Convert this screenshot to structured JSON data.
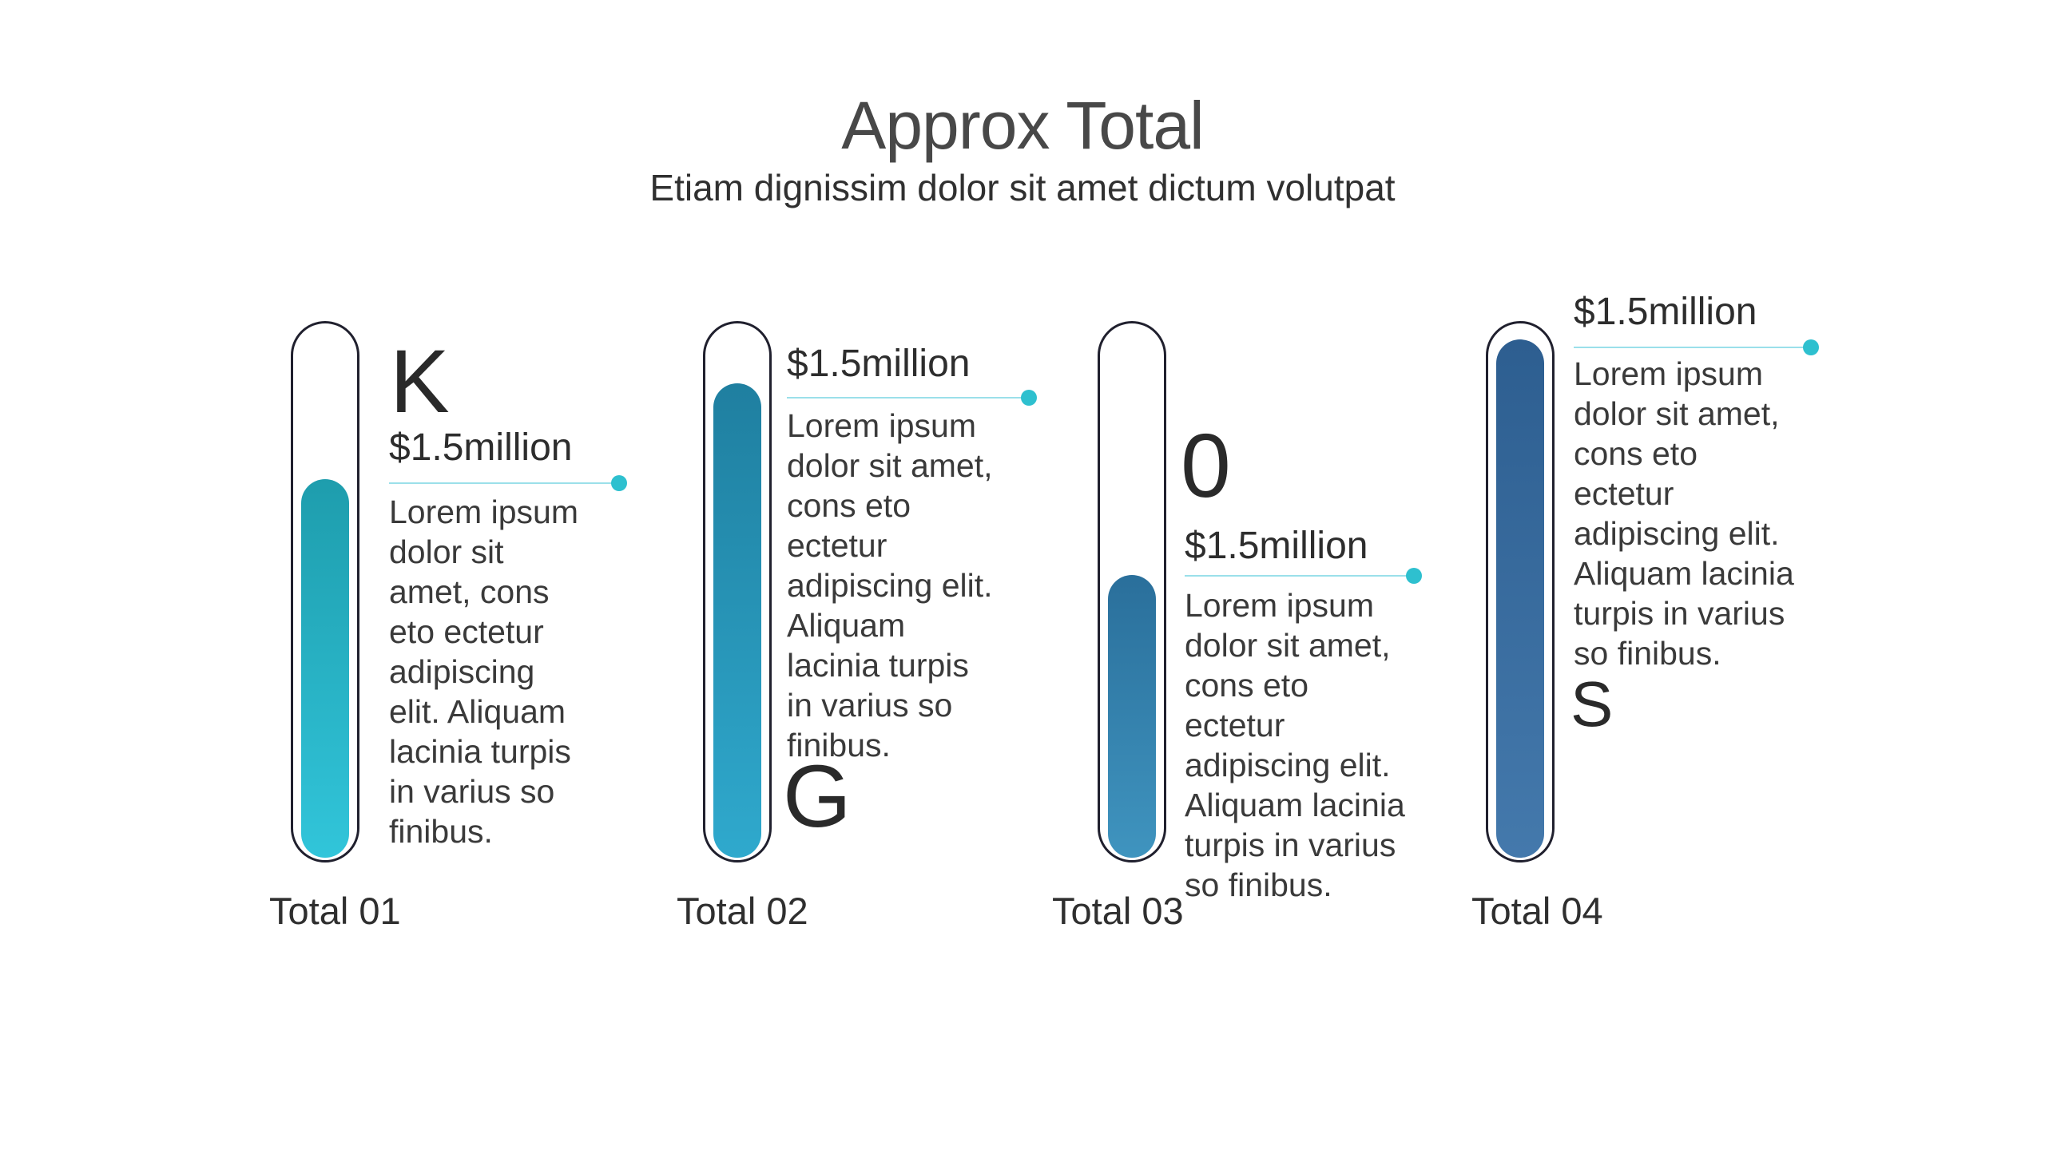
{
  "header": {
    "title": "Approx Total",
    "subtitle": "Etiam dignissim dolor sit amet dictum volutpat"
  },
  "columns": [
    {
      "label": "Total 01",
      "value": "$1.5million",
      "watermark_letter": "K",
      "body_lines": [
        "Lorem ipsum",
        "dolor sit",
        "amet, cons",
        "eto ectetur",
        "adipiscing",
        "elit. Aliquam",
        "lacinia turpis",
        "in varius so",
        "finibus."
      ],
      "fill_percent": 71,
      "fill_color_top": "#1e9dad",
      "fill_color_bottom": "#31c5da"
    },
    {
      "label": "Total 02",
      "value": "$1.5million",
      "watermark_letter": "G",
      "body_lines": [
        "Lorem ipsum",
        "dolor sit amet,",
        "cons eto",
        "ectetur",
        "adipiscing elit.",
        "Aliquam",
        "lacinia turpis",
        "in varius so",
        "finibus."
      ],
      "fill_percent": 89,
      "fill_color_top": "#1f7fa0",
      "fill_color_bottom": "#2fa9cd"
    },
    {
      "label": "Total 03",
      "value": "$1.5million",
      "watermark_letter": "0",
      "body_lines": [
        "Lorem ipsum",
        "dolor sit amet,",
        "cons eto",
        "ectetur",
        "adipiscing elit.",
        "Aliquam lacinia",
        "turpis in varius",
        "so finibus."
      ],
      "fill_percent": 53,
      "fill_color_top": "#2a6f9b",
      "fill_color_bottom": "#3f94bf"
    },
    {
      "label": "Total 04",
      "value": "$1.5million",
      "watermark_letter": "S",
      "body_lines": [
        "Lorem ipsum",
        "dolor sit amet,",
        "cons eto",
        "ectetur",
        "adipiscing elit.",
        "Aliquam lacinia",
        "turpis in varius",
        "so finibus."
      ],
      "fill_percent": 97,
      "fill_color_top": "#2d5e90",
      "fill_color_bottom": "#4479ac"
    }
  ],
  "accents": {
    "underline_color": "#9be0ea",
    "dot_color": "#2ec0cf",
    "outline_color": "#20202e"
  },
  "chart_data": {
    "type": "bar",
    "title": "Approx Total",
    "subtitle": "Etiam dignissim dolor sit amet dictum volutpat",
    "categories": [
      "Total 01",
      "Total 02",
      "Total 03",
      "Total 04"
    ],
    "values": [
      "$1.5million",
      "$1.5million",
      "$1.5million",
      "$1.5million"
    ],
    "fill_percent": [
      71,
      89,
      53,
      97
    ],
    "orientation": "vertical-thermometer",
    "legend": "none",
    "grid": false
  }
}
